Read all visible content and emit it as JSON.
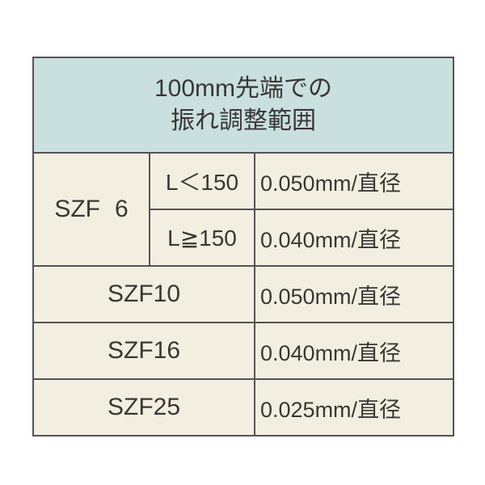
{
  "table": {
    "header_line1": "100mm先端での",
    "header_line2": "振れ調整範囲",
    "header_bg": "#c9e0de",
    "body_bg": "#f3efe0",
    "border_color": "#54525a",
    "text_color": "#3a3636",
    "header_fontsize": 30,
    "body_fontsize": 28,
    "rows": [
      {
        "model_prefix": "SZF",
        "model_number": "6",
        "model_rowspan": 2,
        "condition": "L＜150",
        "value": "0.050mm/直径"
      },
      {
        "condition": "L≧150",
        "value": "0.040mm/直径"
      },
      {
        "model_full": "SZF10",
        "model_colspan": 2,
        "value": "0.050mm/直径"
      },
      {
        "model_full": "SZF16",
        "model_colspan": 2,
        "value": "0.040mm/直径"
      },
      {
        "model_full": "SZF25",
        "model_colspan": 2,
        "value": "0.025mm/直径"
      }
    ]
  }
}
